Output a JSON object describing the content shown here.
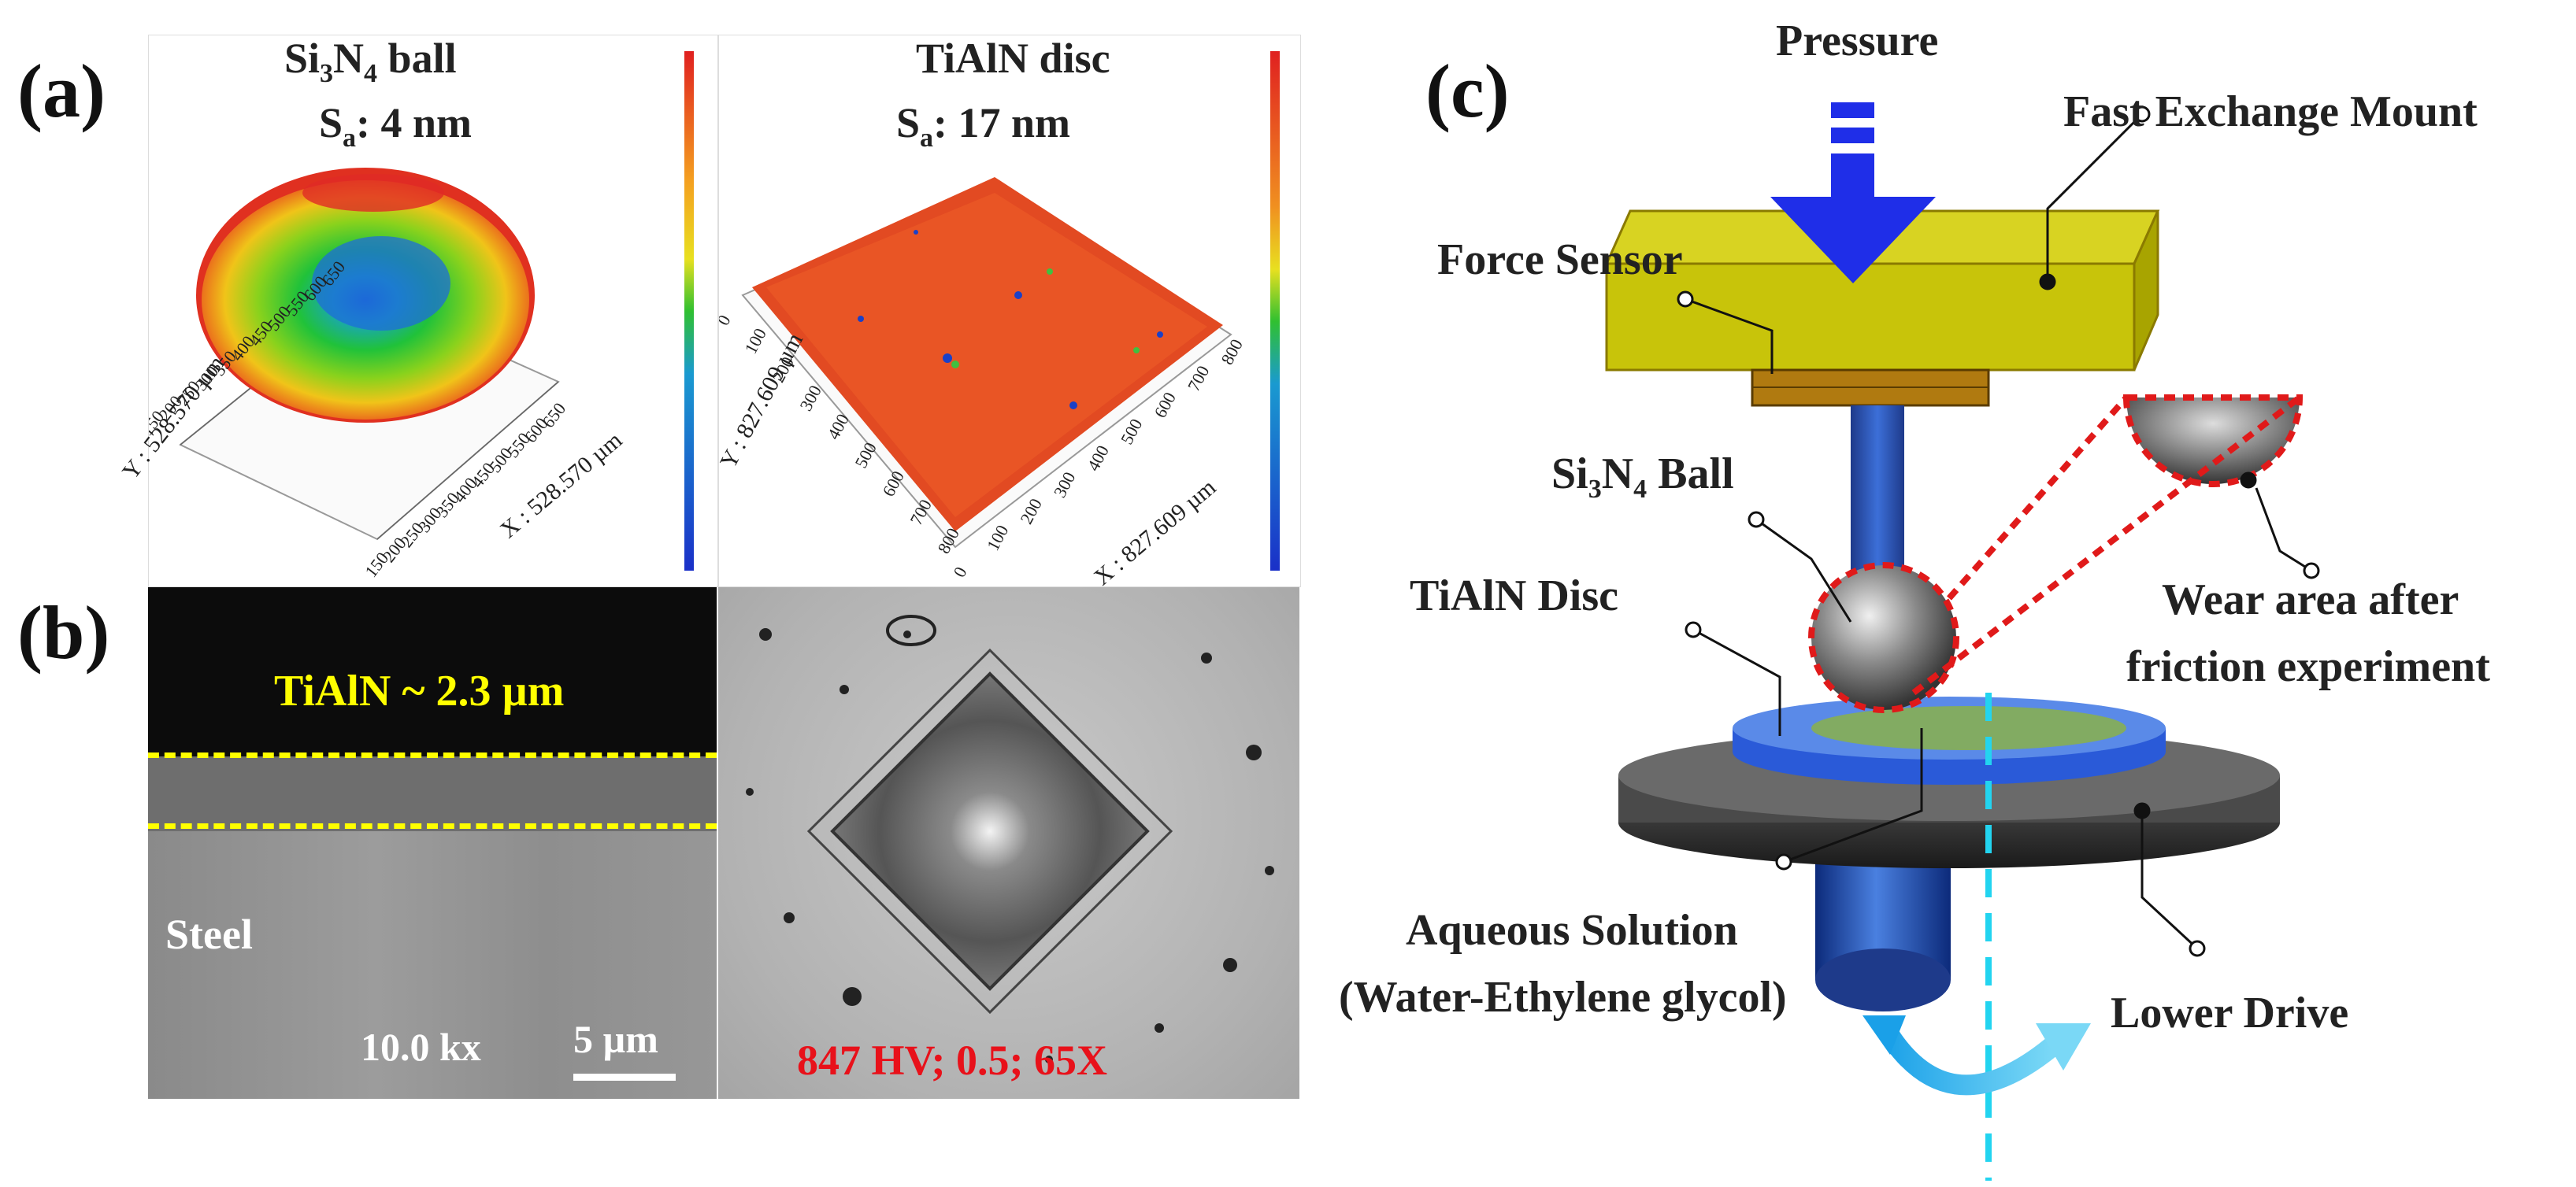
{
  "panel_labels": {
    "a": "(a)",
    "b": "(b)",
    "c": "(c)"
  },
  "panel_a": {
    "left": {
      "title_prefix": "Si",
      "title_sub1": "3",
      "title_mid": "N",
      "title_sub2": "4",
      "title_suffix": " ball",
      "sa_prefix": "S",
      "sa_sub": "a",
      "sa_value": ": 4 nm",
      "y_axis_label": "Y : 528.570 µm",
      "x_axis_label": "X : 528.570 µm",
      "y_ticks": [
        "150",
        "200",
        "250",
        "300",
        "350",
        "400",
        "450",
        "500",
        "550",
        "600",
        "650"
      ],
      "x_ticks": [
        "150",
        "200",
        "250",
        "300",
        "350",
        "400",
        "450",
        "500",
        "550",
        "600",
        "650"
      ]
    },
    "right": {
      "title": "TiAlN disc",
      "sa_prefix": "S",
      "sa_sub": "a",
      "sa_value": ": 17 nm",
      "y_axis_label": "Y : 827.609 µm",
      "x_axis_label": "X : 827.609 µm",
      "y_ticks": [
        "0",
        "100",
        "200",
        "300",
        "400",
        "500",
        "600",
        "700",
        "800"
      ],
      "x_ticks": [
        "0",
        "100",
        "200",
        "300",
        "400",
        "500",
        "600",
        "700",
        "800"
      ]
    }
  },
  "panel_b": {
    "layer_label": "TiAlN ~ 2.3 µm",
    "substrate_label": "Steel",
    "magnification": "10.0 kx",
    "scale_bar": "5 µm",
    "hardness": "847 HV; 0.5; 65X"
  },
  "panel_c": {
    "pressure": "Pressure",
    "fast_exchange_mount": "Fast Exchange Mount",
    "force_sensor": "Force Sensor",
    "ball_prefix": "Si",
    "ball_sub1": "3",
    "ball_mid": "N",
    "ball_sub2": "4",
    "ball_suffix": " Ball",
    "disc": "TiAlN Disc",
    "wear_line1": "Wear area after",
    "wear_line2": "friction experiment",
    "solution_line1": "Aqueous Solution",
    "solution_line2": "(Water-Ethylene glycol)",
    "lower_drive": "Lower Drive"
  },
  "colors": {
    "highlight_yellow": "#ffff00",
    "hardness_red": "#e8111a",
    "mount_yellow": "#c8c40a",
    "arrow_blue": "#1f2ee8",
    "axis_cyan": "#22d4f0",
    "wear_red_dotted": "#e01a1a"
  }
}
